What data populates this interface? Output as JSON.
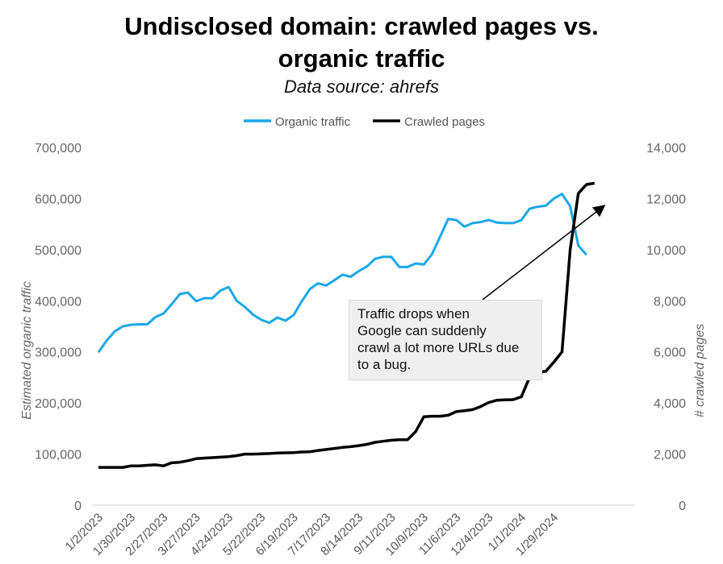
{
  "chart_data": {
    "type": "line",
    "title_line1": "Undisclosed domain: crawled pages vs.",
    "title_line2": "organic traffic",
    "subtitle": "Data source: ahrefs",
    "ylabel_left": "Estimated organic traffic",
    "ylabel_right": "# crawled pages",
    "ylim_left": [
      0,
      700000
    ],
    "ylim_right": [
      0,
      14000
    ],
    "yticks_left": [
      "0",
      "100,000",
      "200,000",
      "300,000",
      "400,000",
      "500,000",
      "600,000",
      "700,000"
    ],
    "yticks_right": [
      "0",
      "2,000",
      "4,000",
      "6,000",
      "8,000",
      "10,000",
      "12,000",
      "14,000"
    ],
    "xtick_labels": [
      "1/2/2023",
      "1/30/2023",
      "2/27/2023",
      "3/27/2023",
      "4/24/2023",
      "5/22/2023",
      "6/19/2023",
      "7/17/2023",
      "8/14/2023",
      "9/11/2023",
      "10/9/2023",
      "11/6/2023",
      "12/4/2023",
      "1/1/2024",
      "1/29/2024"
    ],
    "x_weeks": [
      0,
      1,
      2,
      3,
      4,
      5,
      6,
      7,
      8,
      9,
      10,
      11,
      12,
      13,
      14,
      15,
      16,
      17,
      18,
      19,
      20,
      21,
      22,
      23,
      24,
      25,
      26,
      27,
      28,
      29,
      30,
      31,
      32,
      33,
      34,
      35,
      36,
      37,
      38,
      39,
      40,
      41,
      42,
      43,
      44,
      45,
      46,
      47,
      48,
      49,
      50,
      51,
      52,
      53,
      54,
      55,
      56,
      57,
      58,
      59,
      60,
      61,
      62,
      63,
      64,
      65,
      66
    ],
    "series": [
      {
        "name": "Organic traffic",
        "color": "#1aa7e8",
        "axis": "left",
        "values": [
          299000,
          322000,
          340000,
          350000,
          353000,
          354000,
          354000,
          368000,
          375000,
          393000,
          413000,
          416000,
          399000,
          405000,
          405000,
          420000,
          427000,
          400000,
          388000,
          373000,
          363000,
          357000,
          367000,
          361000,
          372000,
          399000,
          423000,
          434000,
          430000,
          440000,
          451000,
          447000,
          458000,
          467000,
          482000,
          486000,
          486000,
          466000,
          466000,
          473000,
          471000,
          491000,
          525000,
          560000,
          558000,
          545000,
          552000,
          554000,
          558000,
          553000,
          552000,
          552000,
          558000,
          580000,
          584000,
          586000,
          600000,
          609000,
          585000,
          508000,
          490000
        ]
      },
      {
        "name": "Crawled pages",
        "color": "#000000",
        "axis": "right",
        "values": [
          1480,
          1480,
          1480,
          1480,
          1540,
          1540,
          1560,
          1580,
          1540,
          1660,
          1680,
          1740,
          1820,
          1840,
          1860,
          1880,
          1900,
          1940,
          2000,
          2000,
          2010,
          2020,
          2040,
          2050,
          2060,
          2080,
          2090,
          2140,
          2180,
          2220,
          2260,
          2290,
          2330,
          2380,
          2460,
          2500,
          2540,
          2560,
          2560,
          2880,
          3460,
          3480,
          3480,
          3520,
          3660,
          3700,
          3740,
          3860,
          4020,
          4110,
          4120,
          4130,
          4240,
          5000,
          5200,
          5240,
          5600,
          6000,
          10000,
          12200,
          12550,
          12600
        ]
      }
    ],
    "traffic_weeks": [
      0,
      1,
      2,
      3,
      4,
      5,
      6,
      7,
      8,
      9,
      10,
      11,
      12,
      13,
      14,
      15,
      16,
      17,
      18,
      19,
      20,
      21,
      22,
      23,
      24,
      25,
      26,
      27,
      28,
      29,
      30,
      31,
      32,
      33,
      34,
      35,
      36,
      37,
      38,
      39,
      40,
      41,
      42,
      43,
      44,
      45,
      46,
      47,
      48,
      49,
      50,
      51,
      52,
      53,
      54,
      55,
      56,
      57,
      58,
      59,
      60
    ],
    "crawl_weeks": [
      0,
      1,
      2,
      3,
      4,
      5,
      6,
      7,
      8,
      9,
      10,
      11,
      12,
      13,
      14,
      15,
      16,
      17,
      18,
      19,
      20,
      21,
      22,
      23,
      24,
      25,
      26,
      27,
      28,
      29,
      30,
      31,
      32,
      33,
      34,
      35,
      36,
      37,
      38,
      39,
      40,
      41,
      42,
      43,
      44,
      45,
      46,
      47,
      48,
      49,
      50,
      51,
      52,
      53,
      54,
      55,
      56,
      57,
      58,
      59,
      60,
      61
    ],
    "annotation": "Traffic drops when Google can suddenly crawl a lot more URLs due to a bug.",
    "annotation_lines": [
      "Traffic drops when",
      "Google can suddenly",
      "crawl a lot more URLs due",
      "to a bug."
    ],
    "legend_position": "top-center",
    "grid": true
  }
}
